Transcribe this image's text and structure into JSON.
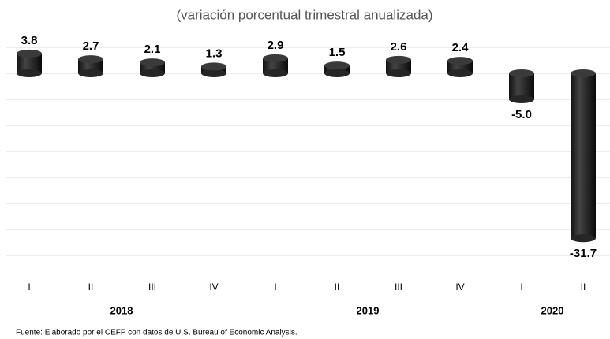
{
  "chart_data": {
    "type": "bar",
    "title": "(variación porcentual trimestral anualizada)",
    "groups": [
      {
        "name": "2018",
        "categories": [
          "I",
          "II",
          "III",
          "IV"
        ]
      },
      {
        "name": "2019",
        "categories": [
          "I",
          "II",
          "III",
          "IV"
        ]
      },
      {
        "name": "2020",
        "categories": [
          "I",
          "II"
        ]
      }
    ],
    "values": [
      3.8,
      2.7,
      2.1,
      1.3,
      2.9,
      1.5,
      2.6,
      2.4,
      -5.0,
      -31.7
    ],
    "value_labels": [
      "3.8",
      "2.7",
      "2.1",
      "1.3",
      "2.9",
      "1.5",
      "2.6",
      "2.4",
      "-5.0",
      "-31.7"
    ],
    "color": "#262626",
    "ylim": [
      -35,
      5
    ],
    "yticks": [
      -35,
      -30,
      -25,
      -20,
      -15,
      -10,
      -5,
      0,
      5
    ],
    "grid": true,
    "note": "Fuente: Elaborado por el CEFP con datos de U.S. Bureau of Economic Analysis."
  }
}
